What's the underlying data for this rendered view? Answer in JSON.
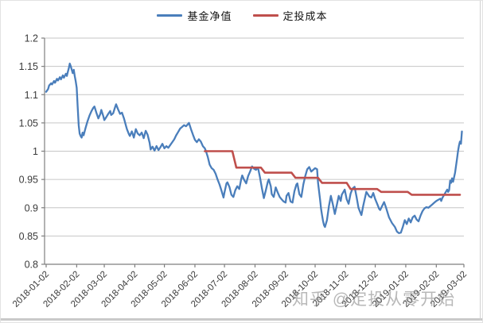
{
  "watermark": "知乎 @定投从零开始",
  "legend": {
    "position": "top",
    "items": [
      {
        "label": "基金净值",
        "color": "#4a7ebb"
      },
      {
        "label": "定投成本",
        "color": "#bf4f4c"
      }
    ]
  },
  "chart_data": {
    "type": "line",
    "title": "",
    "xlabel": "",
    "ylabel": "",
    "grid": true,
    "legend_position": "top",
    "y_axis": {
      "range": [
        0.8,
        1.2
      ],
      "ticks": [
        1.2,
        1.15,
        1.1,
        1.05,
        1.0,
        0.95,
        0.9,
        0.85,
        0.8
      ],
      "tick_labels": [
        "1.2",
        "1.15",
        "1.1",
        "1.05",
        "1",
        "0.95",
        "0.9",
        "0.85",
        "0.8"
      ]
    },
    "x_axis": {
      "unit": "days since 2018-01-02",
      "tick_days": [
        0,
        31,
        59,
        90,
        120,
        151,
        181,
        212,
        243,
        273,
        304,
        334,
        365,
        396,
        424
      ],
      "tick_labels": [
        "2018-01-02",
        "2018-02-02",
        "2018-03-02",
        "2018-04-02",
        "2018-05-02",
        "2018-06-02",
        "2018-07-02",
        "2018-08-02",
        "2018-09-02",
        "2018-10-02",
        "2018-11-02",
        "2018-12-02",
        "2019-01-02",
        "2019-02-02",
        "2019-03-02"
      ]
    },
    "series": [
      {
        "name": "基金净值",
        "color": "#4a7ebb",
        "width": 2.3,
        "points": [
          [
            0,
            1.105
          ],
          [
            2,
            1.11
          ],
          [
            3,
            1.116
          ],
          [
            5,
            1.12
          ],
          [
            6,
            1.118
          ],
          [
            8,
            1.124
          ],
          [
            9,
            1.121
          ],
          [
            11,
            1.128
          ],
          [
            12,
            1.125
          ],
          [
            14,
            1.131
          ],
          [
            15,
            1.127
          ],
          [
            17,
            1.134
          ],
          [
            18,
            1.13
          ],
          [
            20,
            1.137
          ],
          [
            21,
            1.133
          ],
          [
            22,
            1.14
          ],
          [
            23,
            1.147
          ],
          [
            24,
            1.155
          ],
          [
            25,
            1.15
          ],
          [
            26,
            1.144
          ],
          [
            27,
            1.138
          ],
          [
            28,
            1.144
          ],
          [
            29,
            1.133
          ],
          [
            30,
            1.124
          ],
          [
            31,
            1.112
          ],
          [
            32,
            1.079
          ],
          [
            33,
            1.046
          ],
          [
            34,
            1.031
          ],
          [
            35,
            1.027
          ],
          [
            36,
            1.024
          ],
          [
            37,
            1.033
          ],
          [
            38,
            1.028
          ],
          [
            40,
            1.041
          ],
          [
            42,
            1.053
          ],
          [
            44,
            1.063
          ],
          [
            46,
            1.071
          ],
          [
            48,
            1.077
          ],
          [
            49,
            1.079
          ],
          [
            51,
            1.068
          ],
          [
            53,
            1.058
          ],
          [
            55,
            1.066
          ],
          [
            56,
            1.073
          ],
          [
            58,
            1.062
          ],
          [
            59,
            1.055
          ],
          [
            61,
            1.06
          ],
          [
            63,
            1.066
          ],
          [
            65,
            1.071
          ],
          [
            66,
            1.064
          ],
          [
            68,
            1.067
          ],
          [
            70,
            1.078
          ],
          [
            71,
            1.083
          ],
          [
            73,
            1.074
          ],
          [
            75,
            1.066
          ],
          [
            77,
            1.068
          ],
          [
            79,
            1.058
          ],
          [
            81,
            1.045
          ],
          [
            82,
            1.039
          ],
          [
            84,
            1.03
          ],
          [
            85,
            1.027
          ],
          [
            87,
            1.035
          ],
          [
            89,
            1.024
          ],
          [
            91,
            1.039
          ],
          [
            93,
            1.031
          ],
          [
            95,
            1.028
          ],
          [
            97,
            1.033
          ],
          [
            99,
            1.023
          ],
          [
            101,
            1.036
          ],
          [
            103,
            1.029
          ],
          [
            105,
            1.015
          ],
          [
            106,
            1.003
          ],
          [
            108,
            1.008
          ],
          [
            110,
            1.001
          ],
          [
            112,
            1.009
          ],
          [
            114,
            1.002
          ],
          [
            116,
            1.007
          ],
          [
            118,
            1.013
          ],
          [
            120,
            1.005
          ],
          [
            122,
            1.009
          ],
          [
            124,
            1.006
          ],
          [
            126,
            1.011
          ],
          [
            128,
            1.016
          ],
          [
            130,
            1.021
          ],
          [
            132,
            1.028
          ],
          [
            134,
            1.034
          ],
          [
            136,
            1.04
          ],
          [
            138,
            1.043
          ],
          [
            140,
            1.046
          ],
          [
            142,
            1.044
          ],
          [
            144,
            1.048
          ],
          [
            145,
            1.05
          ],
          [
            147,
            1.039
          ],
          [
            149,
            1.029
          ],
          [
            151,
            1.02
          ],
          [
            153,
            1.016
          ],
          [
            155,
            1.021
          ],
          [
            157,
            1.017
          ],
          [
            159,
            1.009
          ],
          [
            161,
            1.005
          ],
          [
            162,
            1.001
          ],
          [
            164,
            0.99
          ],
          [
            166,
            0.976
          ],
          [
            168,
            0.97
          ],
          [
            170,
            0.967
          ],
          [
            172,
            0.96
          ],
          [
            174,
            0.95
          ],
          [
            176,
            0.941
          ],
          [
            178,
            0.93
          ],
          [
            180,
            0.918
          ],
          [
            181,
            0.927
          ],
          [
            183,
            0.943
          ],
          [
            184,
            0.945
          ],
          [
            186,
            0.937
          ],
          [
            188,
            0.923
          ],
          [
            190,
            0.919
          ],
          [
            192,
            0.931
          ],
          [
            194,
            0.938
          ],
          [
            196,
            0.933
          ],
          [
            198,
            0.951
          ],
          [
            199,
            0.957
          ],
          [
            201,
            0.949
          ],
          [
            203,
            0.943
          ],
          [
            205,
            0.956
          ],
          [
            207,
            0.964
          ],
          [
            209,
            0.973
          ],
          [
            211,
            0.969
          ],
          [
            213,
            0.967
          ],
          [
            215,
            0.971
          ],
          [
            217,
            0.954
          ],
          [
            219,
            0.934
          ],
          [
            221,
            0.917
          ],
          [
            223,
            0.931
          ],
          [
            225,
            0.946
          ],
          [
            226,
            0.95
          ],
          [
            228,
            0.938
          ],
          [
            229,
            0.924
          ],
          [
            231,
            0.919
          ],
          [
            233,
            0.936
          ],
          [
            235,
            0.927
          ],
          [
            237,
            0.919
          ],
          [
            239,
            0.915
          ],
          [
            241,
            0.911
          ],
          [
            243,
            0.909
          ],
          [
            244,
            0.921
          ],
          [
            246,
            0.926
          ],
          [
            248,
            0.911
          ],
          [
            250,
            0.909
          ],
          [
            252,
            0.929
          ],
          [
            254,
            0.941
          ],
          [
            255,
            0.943
          ],
          [
            257,
            0.924
          ],
          [
            259,
            0.919
          ],
          [
            261,
            0.941
          ],
          [
            263,
            0.956
          ],
          [
            265,
            0.968
          ],
          [
            267,
            0.972
          ],
          [
            269,
            0.964
          ],
          [
            271,
            0.967
          ],
          [
            273,
            0.97
          ],
          [
            275,
            0.968
          ],
          [
            276,
            0.944
          ],
          [
            278,
            0.915
          ],
          [
            279,
            0.898
          ],
          [
            280,
            0.887
          ],
          [
            281,
            0.877
          ],
          [
            282,
            0.869
          ],
          [
            283,
            0.866
          ],
          [
            285,
            0.878
          ],
          [
            287,
            0.903
          ],
          [
            289,
            0.921
          ],
          [
            291,
            0.906
          ],
          [
            293,
            0.889
          ],
          [
            295,
            0.905
          ],
          [
            297,
            0.921
          ],
          [
            299,
            0.912
          ],
          [
            300,
            0.923
          ],
          [
            303,
            0.932
          ],
          [
            305,
            0.915
          ],
          [
            307,
            0.907
          ],
          [
            309,
            0.925
          ],
          [
            311,
            0.934
          ],
          [
            313,
            0.937
          ],
          [
            315,
            0.92
          ],
          [
            317,
            0.9
          ],
          [
            319,
            0.891
          ],
          [
            320,
            0.887
          ],
          [
            322,
            0.905
          ],
          [
            325,
            0.928
          ],
          [
            328,
            0.92
          ],
          [
            330,
            0.918
          ],
          [
            332,
            0.926
          ],
          [
            334,
            0.915
          ],
          [
            336,
            0.907
          ],
          [
            338,
            0.898
          ],
          [
            339,
            0.896
          ],
          [
            341,
            0.903
          ],
          [
            343,
            0.91
          ],
          [
            345,
            0.9
          ],
          [
            348,
            0.883
          ],
          [
            351,
            0.873
          ],
          [
            354,
            0.866
          ],
          [
            356,
            0.858
          ],
          [
            358,
            0.855
          ],
          [
            360,
            0.856
          ],
          [
            362,
            0.866
          ],
          [
            364,
            0.878
          ],
          [
            366,
            0.871
          ],
          [
            368,
            0.881
          ],
          [
            370,
            0.874
          ],
          [
            372,
            0.883
          ],
          [
            374,
            0.886
          ],
          [
            376,
            0.879
          ],
          [
            378,
            0.876
          ],
          [
            380,
            0.886
          ],
          [
            382,
            0.894
          ],
          [
            384,
            0.899
          ],
          [
            386,
            0.901
          ],
          [
            388,
            0.9
          ],
          [
            390,
            0.903
          ],
          [
            392,
            0.906
          ],
          [
            394,
            0.909
          ],
          [
            396,
            0.912
          ],
          [
            398,
            0.914
          ],
          [
            400,
            0.916
          ],
          [
            401,
            0.912
          ],
          [
            402,
            0.917
          ],
          [
            404,
            0.923
          ],
          [
            405,
            0.926
          ],
          [
            407,
            0.932
          ],
          [
            408,
            0.928
          ],
          [
            409,
            0.931
          ],
          [
            410,
            0.948
          ],
          [
            411,
            0.944
          ],
          [
            412,
            0.952
          ],
          [
            413,
            0.946
          ],
          [
            415,
            0.962
          ],
          [
            416,
            0.974
          ],
          [
            417,
            0.986
          ],
          [
            418,
            1.0
          ],
          [
            419,
            1.01
          ],
          [
            420,
            1.017
          ],
          [
            421,
            1.013
          ],
          [
            422,
            1.035
          ]
        ]
      },
      {
        "name": "定投成本",
        "color": "#bf4f4c",
        "width": 2.6,
        "points": [
          [
            161,
            1.0
          ],
          [
            189,
            1.0
          ],
          [
            193,
            0.971
          ],
          [
            218,
            0.971
          ],
          [
            222,
            0.962
          ],
          [
            249,
            0.962
          ],
          [
            253,
            0.953
          ],
          [
            276,
            0.953
          ],
          [
            280,
            0.944
          ],
          [
            305,
            0.944
          ],
          [
            309,
            0.933
          ],
          [
            336,
            0.933
          ],
          [
            340,
            0.928
          ],
          [
            367,
            0.928
          ],
          [
            371,
            0.923
          ],
          [
            420,
            0.923
          ]
        ]
      }
    ]
  },
  "style": {
    "gridline_color": "#c6c6c6",
    "axis_color": "#7f7f7f",
    "tick_label_color": "#3a3a3a"
  }
}
